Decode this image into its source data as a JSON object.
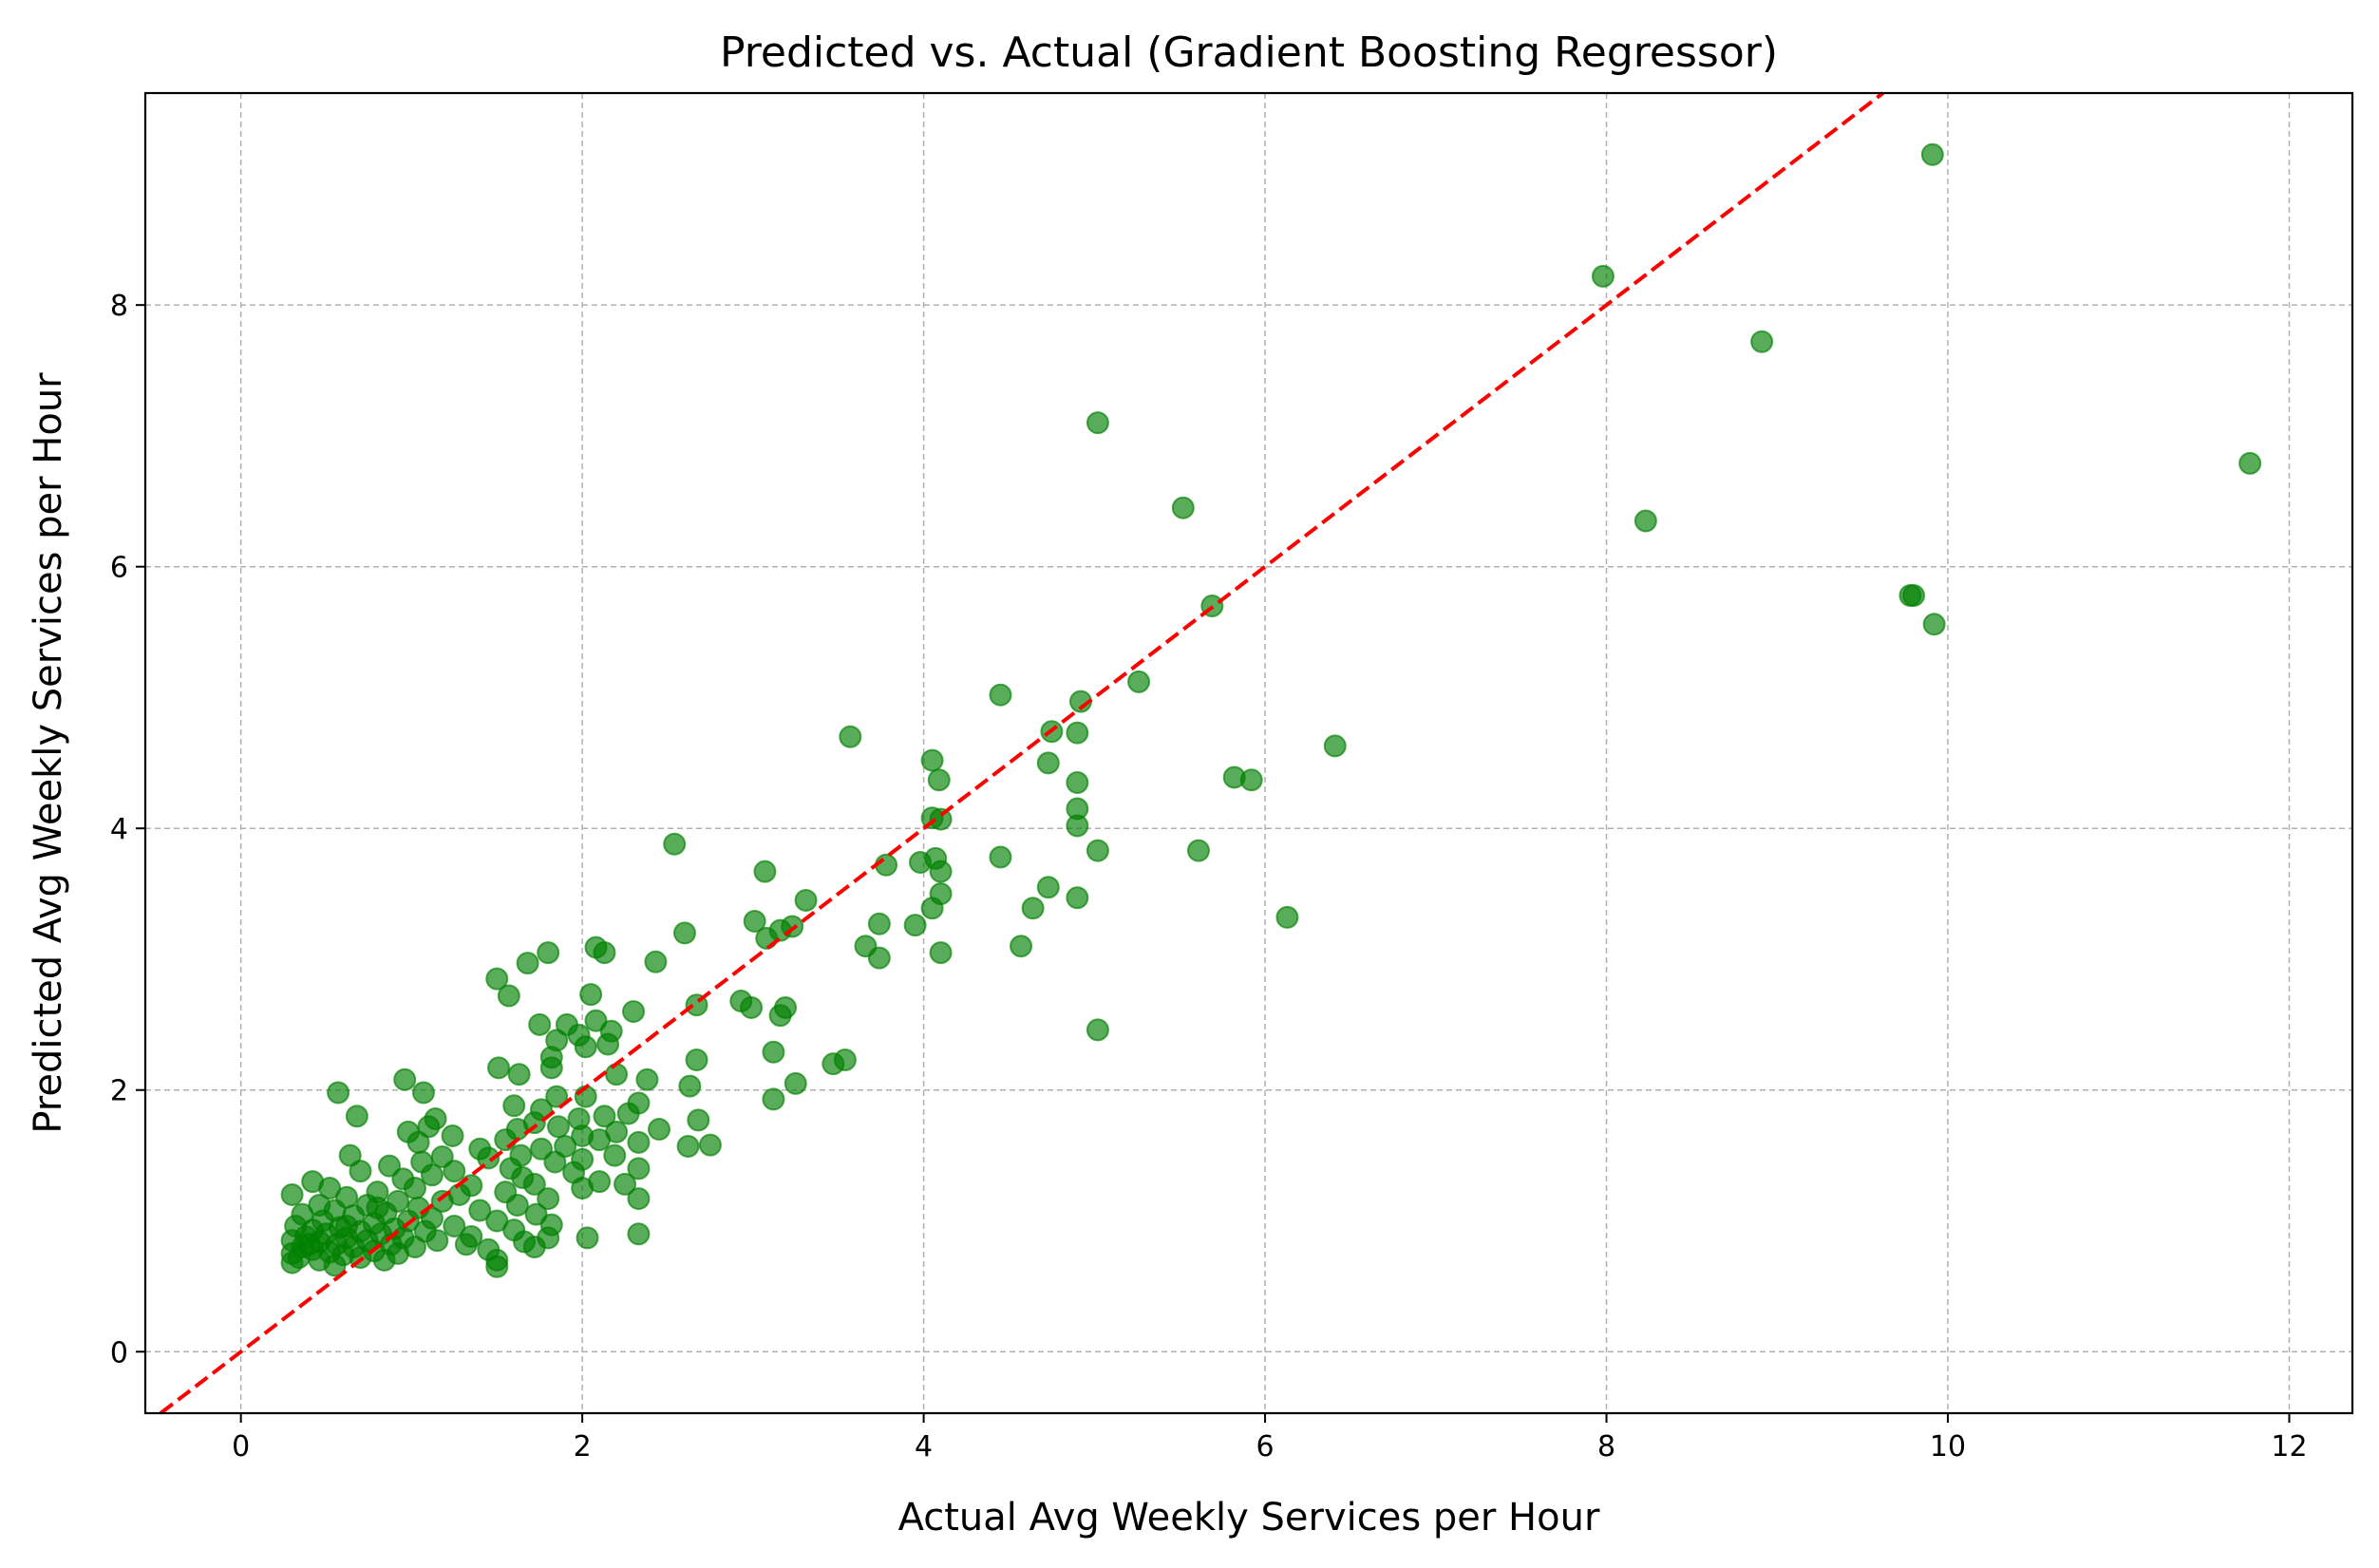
{
  "chart_data": {
    "type": "scatter",
    "title": "Predicted vs. Actual (Gradient Boosting Regressor)",
    "xlabel": "Actual Avg Weekly Services per Hour",
    "ylabel": "Predicted Avg Weekly Services per Hour",
    "xlim": [
      -0.56,
      12.37
    ],
    "ylim": [
      -0.47,
      9.62
    ],
    "xticks": [
      0,
      2,
      4,
      6,
      8,
      10,
      12
    ],
    "yticks": [
      0,
      2,
      4,
      6,
      8
    ],
    "grid": true,
    "point_color": "#008000",
    "point_alpha": 0.65,
    "reference_line": {
      "style": "dashed",
      "color": "#ff0000",
      "from": [
        -0.56,
        -0.56
      ],
      "to": [
        12.37,
        12.37
      ]
    },
    "points": [
      [
        9.91,
        9.15
      ],
      [
        7.98,
        8.22
      ],
      [
        8.91,
        7.72
      ],
      [
        5.02,
        7.1
      ],
      [
        11.77,
        6.79
      ],
      [
        5.52,
        6.45
      ],
      [
        8.23,
        6.35
      ],
      [
        9.78,
        5.78
      ],
      [
        9.8,
        5.78
      ],
      [
        9.92,
        5.56
      ],
      [
        5.69,
        5.7
      ],
      [
        5.26,
        5.12
      ],
      [
        4.45,
        5.02
      ],
      [
        4.92,
        4.97
      ],
      [
        4.75,
        4.74
      ],
      [
        4.9,
        4.73
      ],
      [
        3.57,
        4.7
      ],
      [
        6.41,
        4.63
      ],
      [
        4.73,
        4.5
      ],
      [
        4.05,
        4.52
      ],
      [
        4.09,
        4.37
      ],
      [
        5.82,
        4.39
      ],
      [
        5.92,
        4.37
      ],
      [
        4.9,
        4.35
      ],
      [
        4.9,
        4.15
      ],
      [
        4.05,
        4.08
      ],
      [
        4.1,
        4.07
      ],
      [
        4.9,
        4.02
      ],
      [
        2.54,
        3.88
      ],
      [
        5.02,
        3.83
      ],
      [
        5.61,
        3.83
      ],
      [
        4.45,
        3.78
      ],
      [
        4.07,
        3.77
      ],
      [
        3.98,
        3.74
      ],
      [
        3.78,
        3.72
      ],
      [
        4.1,
        3.67
      ],
      [
        3.07,
        3.67
      ],
      [
        4.73,
        3.55
      ],
      [
        4.1,
        3.5
      ],
      [
        4.9,
        3.47
      ],
      [
        3.31,
        3.45
      ],
      [
        4.64,
        3.39
      ],
      [
        4.05,
        3.39
      ],
      [
        6.13,
        3.32
      ],
      [
        3.01,
        3.29
      ],
      [
        3.74,
        3.27
      ],
      [
        3.95,
        3.26
      ],
      [
        3.23,
        3.25
      ],
      [
        3.16,
        3.22
      ],
      [
        2.6,
        3.2
      ],
      [
        3.08,
        3.16
      ],
      [
        3.66,
        3.1
      ],
      [
        4.57,
        3.1
      ],
      [
        2.08,
        3.09
      ],
      [
        1.8,
        3.05
      ],
      [
        4.1,
        3.05
      ],
      [
        2.13,
        3.05
      ],
      [
        3.74,
        3.01
      ],
      [
        2.43,
        2.98
      ],
      [
        1.68,
        2.97
      ],
      [
        1.5,
        2.85
      ],
      [
        1.57,
        2.72
      ],
      [
        2.67,
        2.65
      ],
      [
        2.93,
        2.68
      ],
      [
        3.19,
        2.63
      ],
      [
        2.99,
        2.63
      ],
      [
        2.05,
        2.73
      ],
      [
        2.3,
        2.6
      ],
      [
        3.16,
        2.57
      ],
      [
        2.08,
        2.53
      ],
      [
        1.75,
        2.5
      ],
      [
        1.91,
        2.5
      ],
      [
        2.17,
        2.45
      ],
      [
        1.98,
        2.42
      ],
      [
        1.85,
        2.38
      ],
      [
        2.02,
        2.33
      ],
      [
        2.15,
        2.35
      ],
      [
        5.02,
        2.46
      ],
      [
        3.12,
        2.29
      ],
      [
        1.82,
        2.25
      ],
      [
        2.67,
        2.23
      ],
      [
        3.54,
        2.23
      ],
      [
        3.47,
        2.2
      ],
      [
        1.51,
        2.17
      ],
      [
        1.82,
        2.17
      ],
      [
        1.63,
        2.12
      ],
      [
        2.2,
        2.12
      ],
      [
        2.38,
        2.08
      ],
      [
        0.96,
        2.08
      ],
      [
        3.25,
        2.05
      ],
      [
        2.63,
        2.03
      ],
      [
        0.57,
        1.98
      ],
      [
        1.07,
        1.98
      ],
      [
        1.85,
        1.95
      ],
      [
        2.02,
        1.95
      ],
      [
        3.12,
        1.93
      ],
      [
        1.6,
        1.88
      ],
      [
        2.33,
        1.9
      ],
      [
        1.76,
        1.85
      ],
      [
        2.27,
        1.82
      ],
      [
        1.14,
        1.78
      ],
      [
        0.68,
        1.8
      ],
      [
        2.13,
        1.8
      ],
      [
        1.98,
        1.78
      ],
      [
        1.72,
        1.75
      ],
      [
        2.68,
        1.77
      ],
      [
        1.1,
        1.72
      ],
      [
        1.62,
        1.7
      ],
      [
        1.86,
        1.72
      ],
      [
        0.98,
        1.68
      ],
      [
        2.2,
        1.68
      ],
      [
        2.45,
        1.7
      ],
      [
        2.0,
        1.65
      ],
      [
        1.24,
        1.65
      ],
      [
        1.55,
        1.62
      ],
      [
        2.1,
        1.62
      ],
      [
        2.33,
        1.6
      ],
      [
        1.04,
        1.6
      ],
      [
        2.75,
        1.58
      ],
      [
        2.62,
        1.57
      ],
      [
        1.9,
        1.57
      ],
      [
        1.4,
        1.55
      ],
      [
        1.76,
        1.55
      ],
      [
        0.64,
        1.5
      ],
      [
        1.64,
        1.5
      ],
      [
        2.19,
        1.5
      ],
      [
        1.18,
        1.49
      ],
      [
        1.45,
        1.48
      ],
      [
        2.0,
        1.47
      ],
      [
        1.06,
        1.45
      ],
      [
        1.84,
        1.45
      ],
      [
        0.87,
        1.42
      ],
      [
        2.33,
        1.4
      ],
      [
        1.58,
        1.4
      ],
      [
        0.7,
        1.38
      ],
      [
        1.25,
        1.38
      ],
      [
        1.95,
        1.37
      ],
      [
        1.12,
        1.35
      ],
      [
        1.65,
        1.33
      ],
      [
        0.95,
        1.32
      ],
      [
        2.1,
        1.3
      ],
      [
        0.42,
        1.3
      ],
      [
        1.72,
        1.28
      ],
      [
        2.25,
        1.28
      ],
      [
        1.35,
        1.27
      ],
      [
        0.52,
        1.25
      ],
      [
        1.02,
        1.25
      ],
      [
        2.0,
        1.25
      ],
      [
        0.8,
        1.22
      ],
      [
        1.55,
        1.22
      ],
      [
        0.3,
        1.2
      ],
      [
        1.28,
        1.2
      ],
      [
        0.62,
        1.18
      ],
      [
        1.8,
        1.17
      ],
      [
        2.33,
        1.17
      ],
      [
        0.92,
        1.15
      ],
      [
        1.18,
        1.15
      ],
      [
        0.46,
        1.12
      ],
      [
        0.74,
        1.12
      ],
      [
        1.62,
        1.12
      ],
      [
        1.04,
        1.1
      ],
      [
        0.55,
        1.08
      ],
      [
        1.4,
        1.08
      ],
      [
        0.85,
        1.06
      ],
      [
        0.36,
        1.05
      ],
      [
        1.73,
        1.05
      ],
      [
        0.66,
        1.04
      ],
      [
        1.12,
        1.02
      ],
      [
        0.98,
        1.0
      ],
      [
        0.48,
        1.0
      ],
      [
        1.5,
        1.0
      ],
      [
        0.78,
        0.98
      ],
      [
        1.82,
        0.97
      ],
      [
        0.32,
        0.96
      ],
      [
        1.25,
        0.96
      ],
      [
        0.58,
        0.95
      ],
      [
        0.9,
        0.94
      ],
      [
        0.42,
        0.93
      ],
      [
        1.6,
        0.93
      ],
      [
        0.7,
        0.92
      ],
      [
        1.08,
        0.92
      ],
      [
        0.5,
        0.9
      ],
      [
        2.33,
        0.9
      ],
      [
        0.82,
        0.9
      ],
      [
        0.38,
        0.88
      ],
      [
        1.35,
        0.88
      ],
      [
        0.62,
        0.87
      ],
      [
        2.03,
        0.87
      ],
      [
        0.95,
        0.87
      ],
      [
        1.8,
        0.87
      ],
      [
        0.3,
        0.85
      ],
      [
        0.74,
        0.85
      ],
      [
        1.15,
        0.85
      ],
      [
        0.46,
        0.84
      ],
      [
        1.66,
        0.84
      ],
      [
        0.56,
        0.82
      ],
      [
        0.88,
        0.82
      ],
      [
        1.32,
        0.82
      ],
      [
        0.36,
        0.8
      ],
      [
        1.72,
        0.8
      ],
      [
        0.66,
        0.8
      ],
      [
        1.02,
        0.8
      ],
      [
        0.42,
        0.78
      ],
      [
        1.45,
        0.78
      ],
      [
        0.78,
        0.77
      ],
      [
        0.52,
        0.76
      ],
      [
        0.3,
        0.75
      ],
      [
        0.92,
        0.75
      ],
      [
        0.6,
        0.74
      ],
      [
        0.34,
        0.72
      ],
      [
        0.7,
        0.72
      ],
      [
        1.5,
        0.7
      ],
      [
        0.46,
        0.7
      ],
      [
        0.84,
        0.7
      ],
      [
        0.3,
        0.68
      ],
      [
        1.5,
        0.65
      ],
      [
        0.55,
        0.66
      ],
      [
        0.4,
        0.82
      ],
      [
        0.62,
        0.96
      ],
      [
        0.8,
        1.1
      ]
    ]
  }
}
